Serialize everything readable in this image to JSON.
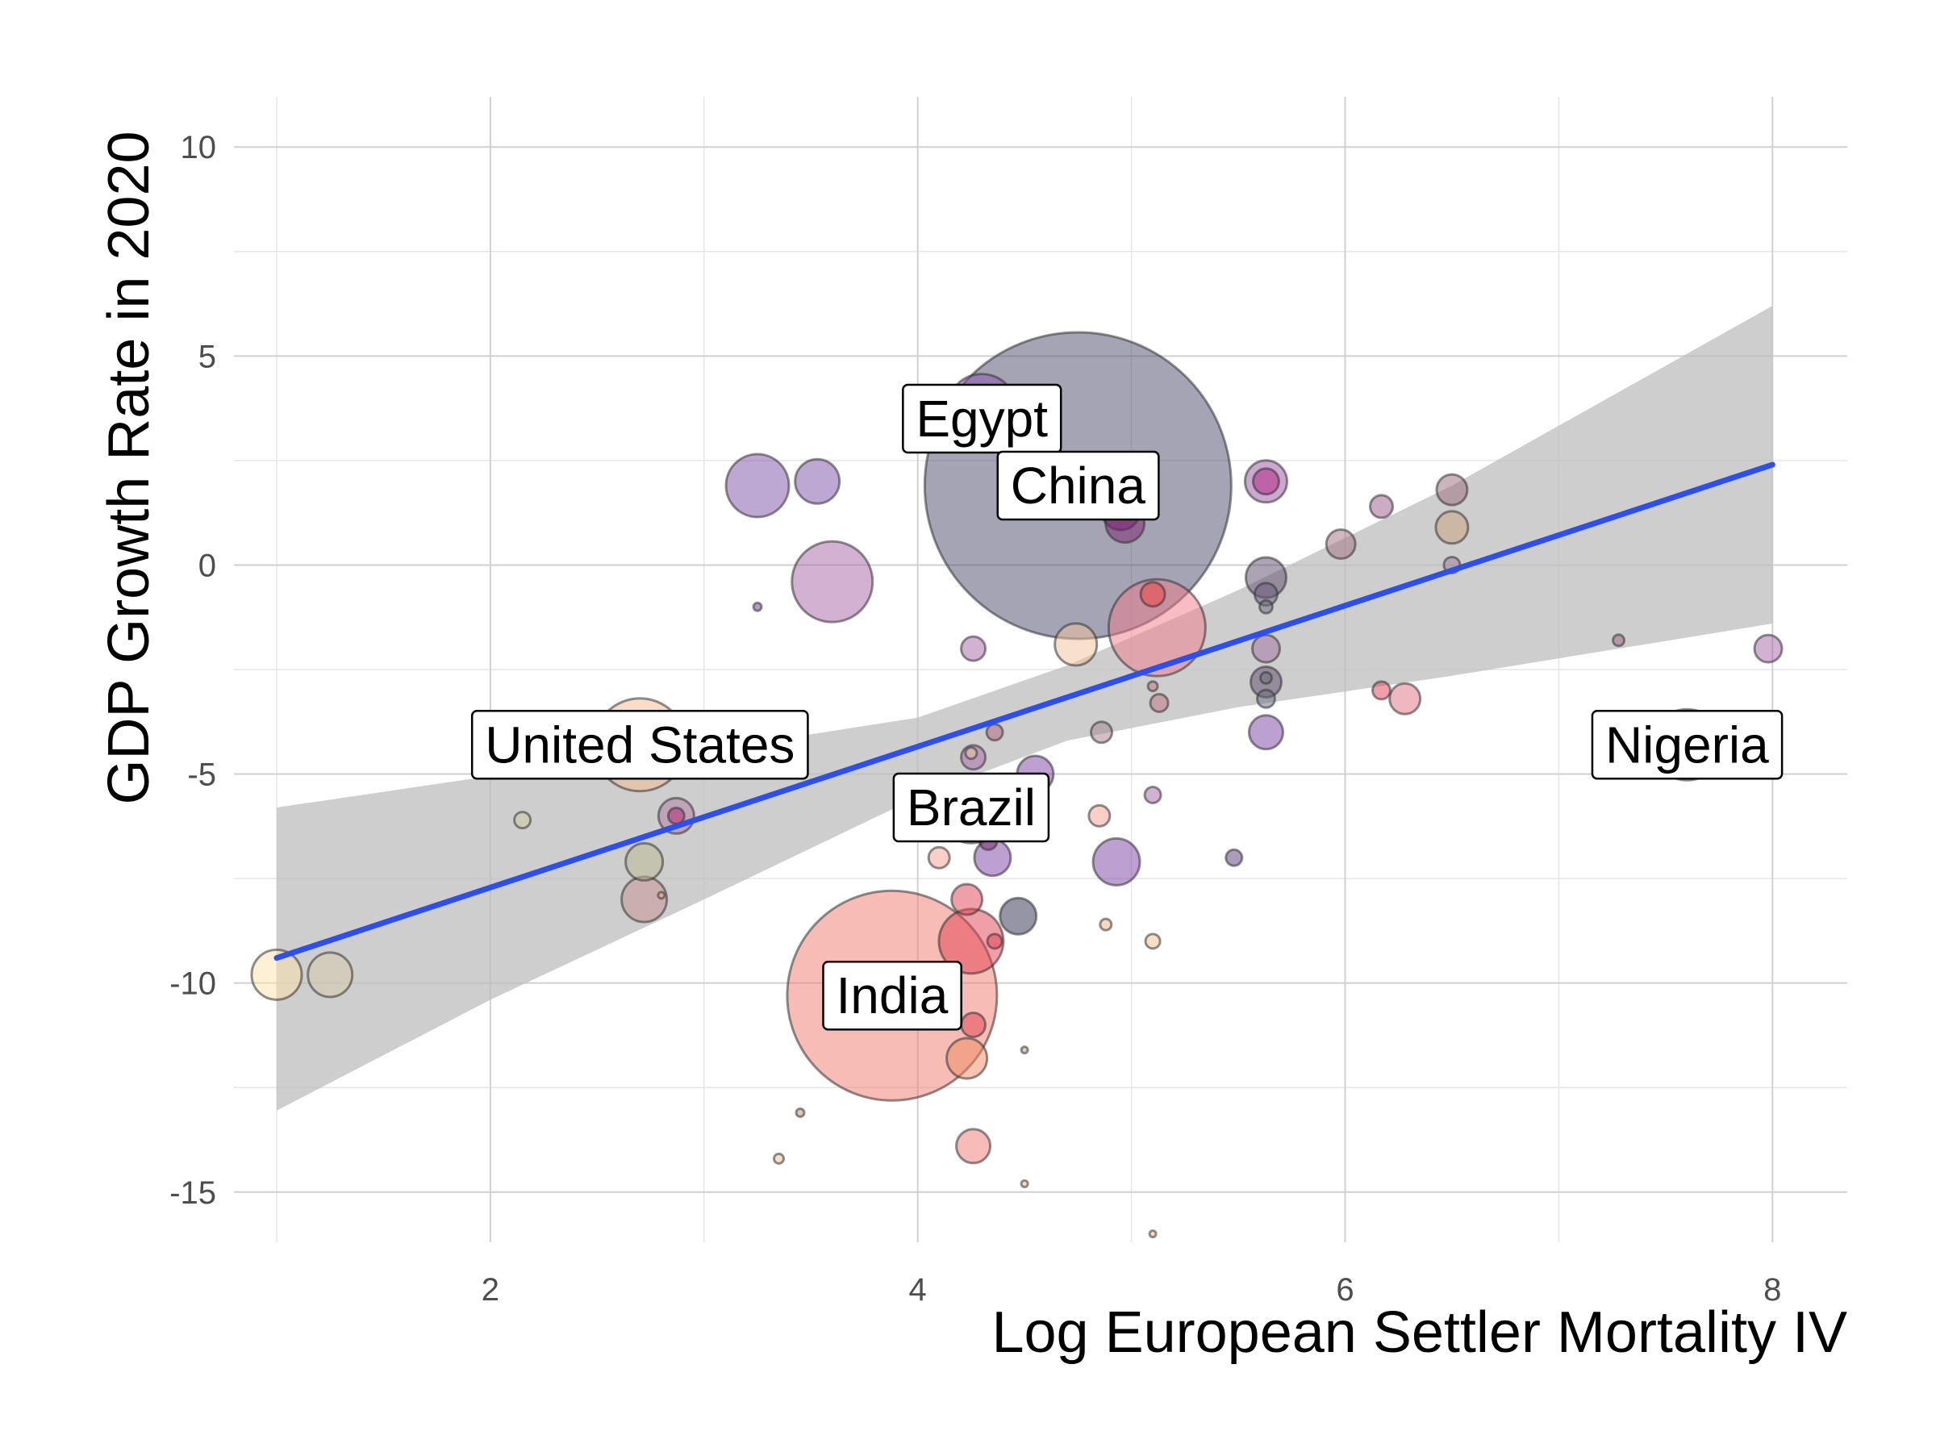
{
  "chart_data": {
    "type": "scatter",
    "xlabel": "Log European Settler Mortality IV",
    "ylabel": "GDP Growth Rate in 2020",
    "xlim": [
      0.8,
      8.35
    ],
    "ylim": [
      -16.2,
      11.2
    ],
    "x_ticks": [
      2,
      4,
      6,
      8
    ],
    "y_ticks": [
      -15,
      -10,
      -5,
      0,
      5,
      10
    ],
    "grid": true,
    "legend": "none",
    "fit_line": {
      "color": "#2e4ff0",
      "x": [
        1.0,
        8.0
      ],
      "y": [
        -9.4,
        2.4
      ]
    },
    "confidence_band": {
      "color": "#bdbdbd",
      "x": [
        1.0,
        2.0,
        3.0,
        4.0,
        4.7,
        5.5,
        6.5,
        8.0
      ],
      "upper": [
        -5.8,
        -5.05,
        -4.45,
        -3.65,
        -2.4,
        -0.6,
        1.9,
        6.2
      ],
      "lower": [
        -13.05,
        -10.4,
        -8.0,
        -5.55,
        -4.2,
        -3.4,
        -2.65,
        -1.4
      ]
    },
    "points": [
      {
        "x": 4.75,
        "y": 1.9,
        "size": 380,
        "color": "#4a4a6a"
      },
      {
        "x": 3.88,
        "y": -10.3,
        "size": 260,
        "color": "#f27a70"
      },
      {
        "x": 2.7,
        "y": -4.3,
        "size": 115,
        "color": "#f7bb8f"
      },
      {
        "x": 7.6,
        "y": -4.3,
        "size": 88,
        "color": "#b06ca0"
      },
      {
        "x": 4.3,
        "y": 3.75,
        "size": 85,
        "color": "#8a4fb0"
      },
      {
        "x": 4.25,
        "y": -5.9,
        "size": 78,
        "color": "#f4a07a"
      },
      {
        "x": 5.12,
        "y": -1.5,
        "size": 120,
        "color": "#f07a8a"
      },
      {
        "x": 3.6,
        "y": -0.4,
        "size": 100,
        "color": "#a864a8"
      },
      {
        "x": 3.25,
        "y": 1.9,
        "size": 78,
        "color": "#7a52a8"
      },
      {
        "x": 3.53,
        "y": 2.0,
        "size": 55,
        "color": "#7a52a8"
      },
      {
        "x": 4.25,
        "y": -9.0,
        "size": 80,
        "color": "#e04050"
      },
      {
        "x": 4.93,
        "y": -7.1,
        "size": 58,
        "color": "#7a42a4"
      },
      {
        "x": 4.95,
        "y": 1.3,
        "size": 48,
        "color": "#7a2070"
      },
      {
        "x": 4.97,
        "y": 1.0,
        "size": 48,
        "color": "#7a2070"
      },
      {
        "x": 4.55,
        "y": -5.0,
        "size": 45,
        "color": "#7a42a4"
      },
      {
        "x": 4.35,
        "y": -7.0,
        "size": 45,
        "color": "#7a42a4"
      },
      {
        "x": 4.47,
        "y": -8.4,
        "size": 45,
        "color": "#2c2c4e"
      },
      {
        "x": 4.23,
        "y": -8.0,
        "size": 38,
        "color": "#e04050"
      },
      {
        "x": 4.23,
        "y": -11.8,
        "size": 50,
        "color": "#f08a60"
      },
      {
        "x": 4.26,
        "y": -13.9,
        "size": 42,
        "color": "#f07a70"
      },
      {
        "x": 4.26,
        "y": -11.0,
        "size": 30,
        "color": "#e04050"
      },
      {
        "x": 4.26,
        "y": -2.0,
        "size": 30,
        "color": "#a864a8"
      },
      {
        "x": 4.26,
        "y": -4.6,
        "size": 30,
        "color": "#a864a8"
      },
      {
        "x": 4.33,
        "y": -6.6,
        "size": 22,
        "color": "#7a2070"
      },
      {
        "x": 4.36,
        "y": -9.0,
        "size": 18,
        "color": "#e04050"
      },
      {
        "x": 4.36,
        "y": -4.0,
        "size": 20,
        "color": "#b06080"
      },
      {
        "x": 4.25,
        "y": -4.5,
        "size": 14,
        "color": "#e8d0a0"
      },
      {
        "x": 4.1,
        "y": -7.0,
        "size": 26,
        "color": "#f5a090"
      },
      {
        "x": 4.74,
        "y": -1.9,
        "size": 52,
        "color": "#f2c29a"
      },
      {
        "x": 5.1,
        "y": -0.7,
        "size": 30,
        "color": "#f04040"
      },
      {
        "x": 4.85,
        "y": -6.0,
        "size": 26,
        "color": "#f5a090"
      },
      {
        "x": 4.86,
        "y": -4.0,
        "size": 26,
        "color": "#a08090"
      },
      {
        "x": 4.88,
        "y": -8.6,
        "size": 14,
        "color": "#f5b080"
      },
      {
        "x": 5.1,
        "y": -5.5,
        "size": 20,
        "color": "#a864a8"
      },
      {
        "x": 5.13,
        "y": -3.3,
        "size": 22,
        "color": "#c07080"
      },
      {
        "x": 5.1,
        "y": -2.9,
        "size": 12,
        "color": "#c07080"
      },
      {
        "x": 5.1,
        "y": -9.0,
        "size": 18,
        "color": "#f5c090"
      },
      {
        "x": 5.1,
        "y": -16.0,
        "size": 8,
        "color": "#f5c090"
      },
      {
        "x": 5.48,
        "y": -7.0,
        "size": 20,
        "color": "#5a3a7a"
      },
      {
        "x": 5.63,
        "y": 2.0,
        "size": 52,
        "color": "#9a50a0"
      },
      {
        "x": 5.63,
        "y": 2.0,
        "size": 32,
        "color": "#b02080"
      },
      {
        "x": 5.63,
        "y": -0.3,
        "size": 50,
        "color": "#5a4a6a"
      },
      {
        "x": 5.63,
        "y": -0.7,
        "size": 28,
        "color": "#6a5a7a"
      },
      {
        "x": 5.63,
        "y": -1.0,
        "size": 16,
        "color": "#6a6a7a"
      },
      {
        "x": 5.63,
        "y": -2.0,
        "size": 34,
        "color": "#a070a0"
      },
      {
        "x": 5.63,
        "y": -2.8,
        "size": 38,
        "color": "#5a4a6a"
      },
      {
        "x": 5.63,
        "y": -2.7,
        "size": 14,
        "color": "#6a6a7a"
      },
      {
        "x": 5.63,
        "y": -3.2,
        "size": 22,
        "color": "#6a6a7a"
      },
      {
        "x": 5.63,
        "y": -4.0,
        "size": 42,
        "color": "#7a42a4"
      },
      {
        "x": 5.98,
        "y": 0.5,
        "size": 36,
        "color": "#a07080"
      },
      {
        "x": 6.17,
        "y": 1.4,
        "size": 28,
        "color": "#9a5a8a"
      },
      {
        "x": 6.17,
        "y": -3.0,
        "size": 22,
        "color": "#e04050"
      },
      {
        "x": 6.28,
        "y": -3.2,
        "size": 38,
        "color": "#e07080"
      },
      {
        "x": 6.5,
        "y": 1.8,
        "size": 38,
        "color": "#9a6a7a"
      },
      {
        "x": 6.5,
        "y": 0.9,
        "size": 40,
        "color": "#c8a07a"
      },
      {
        "x": 6.5,
        "y": 0.0,
        "size": 20,
        "color": "#9a7a9a"
      },
      {
        "x": 7.28,
        "y": -1.8,
        "size": 14,
        "color": "#a06080"
      },
      {
        "x": 7.98,
        "y": -2.0,
        "size": 34,
        "color": "#a864a8"
      },
      {
        "x": 2.15,
        "y": -6.1,
        "size": 20,
        "color": "#d0c8a0"
      },
      {
        "x": 2.72,
        "y": -7.1,
        "size": 46,
        "color": "#b8b890"
      },
      {
        "x": 2.72,
        "y": -8.0,
        "size": 56,
        "color": "#c89090"
      },
      {
        "x": 2.87,
        "y": -6.0,
        "size": 44,
        "color": "#b07aa0"
      },
      {
        "x": 2.87,
        "y": -6.0,
        "size": 20,
        "color": "#b02070"
      },
      {
        "x": 2.8,
        "y": -7.9,
        "size": 8,
        "color": "#f5a090"
      },
      {
        "x": 1.0,
        "y": -9.8,
        "size": 62,
        "color": "#fde2a8"
      },
      {
        "x": 1.25,
        "y": -9.8,
        "size": 55,
        "color": "#d8c8a8"
      },
      {
        "x": 3.25,
        "y": -1.0,
        "size": 10,
        "color": "#6a3a9a"
      },
      {
        "x": 3.45,
        "y": -13.1,
        "size": 10,
        "color": "#c09070"
      },
      {
        "x": 3.35,
        "y": -14.2,
        "size": 12,
        "color": "#f5c090"
      },
      {
        "x": 4.5,
        "y": -11.6,
        "size": 8,
        "color": "#c0a080"
      },
      {
        "x": 4.5,
        "y": -14.8,
        "size": 8,
        "color": "#f5c090"
      }
    ],
    "labels": [
      {
        "text": "Egypt",
        "x": 4.3,
        "y": 3.5
      },
      {
        "text": "China",
        "x": 4.75,
        "y": 1.9
      },
      {
        "text": "United States",
        "x": 2.7,
        "y": -4.3
      },
      {
        "text": "Nigeria",
        "x": 7.6,
        "y": -4.3
      },
      {
        "text": "Brazil",
        "x": 4.25,
        "y": -5.8
      },
      {
        "text": "India",
        "x": 3.88,
        "y": -10.3
      }
    ]
  }
}
